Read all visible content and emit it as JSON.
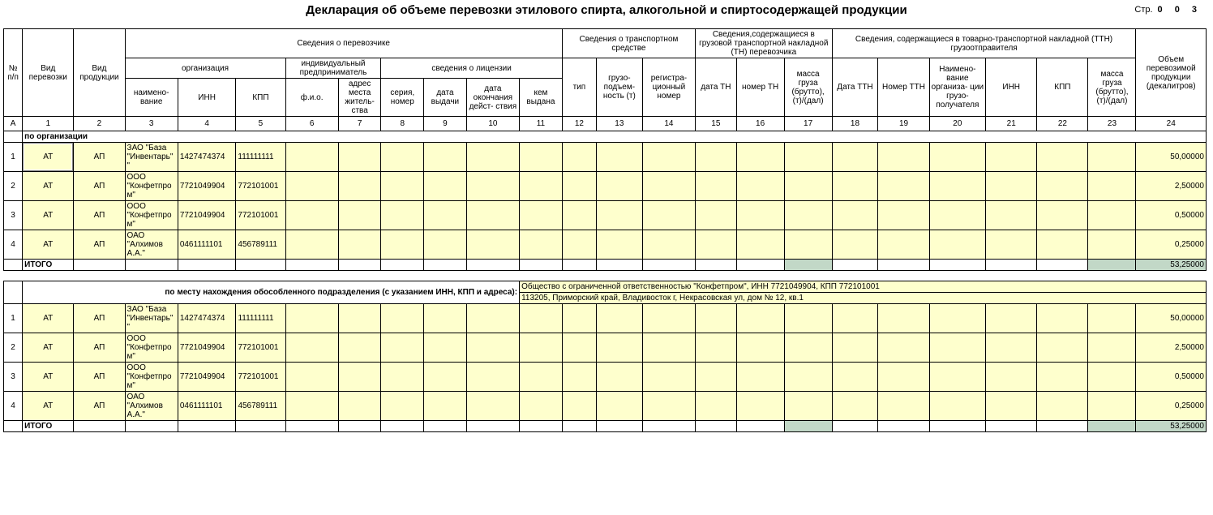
{
  "page": {
    "title": "Декларация об объеме перевозки этилового спирта, алкогольной и спиртосодержащей продукции",
    "page_label": "Стр.",
    "page_number": "0 0 3"
  },
  "colors": {
    "data_bg": "#feffcd",
    "total_bg": "#c2d8c7",
    "border": "#000000",
    "page_bg": "#ffffff"
  },
  "headers": {
    "num": "№ п/п",
    "vid_perevozki": "Вид перевозки",
    "vid_produkcii": "Вид продукции",
    "carrier": "Сведения о перевозчике",
    "org": "организация",
    "ip": "индивидуальный предприниматель",
    "license": "сведения о лицензии",
    "org_name": "наимено- вание",
    "inn": "ИНН",
    "kpp": "КПП",
    "fio": "ф.и.о.",
    "addr": "адрес места житель- ства",
    "serial": "серия, номер",
    "date_issue": "дата выдачи",
    "date_end": "дата окончания дейст- ствия",
    "issued_by": "кем выдана",
    "vehicle": "Сведения о транспортном средстве",
    "type": "тип",
    "capacity": "грузо- подъем- ность (т)",
    "reg_no": "регистра- ционный номер",
    "tn": "Сведения,содержащиеся в грузовой транспортной накладной (ТН) перевозчика",
    "tn_date": "дата ТН",
    "tn_no": "номер ТН",
    "tn_mass": "масса груза (брутто), (т)/(дал)",
    "ttn": "Сведения, содержащиеся в товарно-транспортной накладной (ТТН) грузоотправителя",
    "ttn_date": "Дата ТТН",
    "ttn_no": "Номер ТТН",
    "ttn_org": "Наимено- вание организа- ции грузо- получателя",
    "ttn_inn": "ИНН",
    "ttn_kpp": "КПП",
    "ttn_mass": "масса груза (брутто), (т)/(дал)",
    "volume": "Объем перевозимой продукции (декалитров)"
  },
  "colnums": [
    "А",
    "1",
    "2",
    "3",
    "4",
    "5",
    "6",
    "7",
    "8",
    "9",
    "10",
    "11",
    "12",
    "13",
    "14",
    "15",
    "16",
    "17",
    "18",
    "19",
    "20",
    "21",
    "22",
    "23",
    "24"
  ],
  "sections": {
    "org_label": "по организации",
    "subdiv_label": "по  месту нахождения обособленного подразделения (с указанием  ИНН, КПП и адреса):",
    "subdiv_line1": "Общество с ограниченной ответственностью \"Конфетпром\", ИНН 7721049904, КПП 772101001",
    "subdiv_line2": "113205, Приморский край, Владивосток г, Некрасовская ул, дом № 12, кв.1",
    "total_label": "ИТОГО"
  },
  "rows1": [
    {
      "num": "1",
      "vid_p": "АТ",
      "vid_prod": "АП",
      "name": "ЗАО \"База \"Инвентарь\"\"",
      "inn": "1427474374",
      "kpp": "111111111",
      "vol": "50,00000",
      "selected": true
    },
    {
      "num": "2",
      "vid_p": "АТ",
      "vid_prod": "АП",
      "name": "ООО \"Конфетпром\"",
      "inn": "7721049904",
      "kpp": "772101001",
      "vol": "2,50000"
    },
    {
      "num": "3",
      "vid_p": "АТ",
      "vid_prod": "АП",
      "name": "ООО \"Конфетпром\"",
      "inn": "7721049904",
      "kpp": "772101001",
      "vol": "0,50000"
    },
    {
      "num": "4",
      "vid_p": "АТ",
      "vid_prod": "АП",
      "name": "ОАО \"Алхимов А.А.\"",
      "inn": "0461111101",
      "kpp": "456789111",
      "vol": "0,25000"
    }
  ],
  "total1": "53,25000",
  "rows2": [
    {
      "num": "1",
      "vid_p": "АТ",
      "vid_prod": "АП",
      "name": "ЗАО \"База \"Инвентарь\"\"",
      "inn": "1427474374",
      "kpp": "111111111",
      "vol": "50,00000"
    },
    {
      "num": "2",
      "vid_p": "АТ",
      "vid_prod": "АП",
      "name": "ООО \"Конфетпром\"",
      "inn": "7721049904",
      "kpp": "772101001",
      "vol": "2,50000"
    },
    {
      "num": "3",
      "vid_p": "АТ",
      "vid_prod": "АП",
      "name": "ООО \"Конфетпром\"",
      "inn": "7721049904",
      "kpp": "772101001",
      "vol": "0,50000"
    },
    {
      "num": "4",
      "vid_p": "АТ",
      "vid_prod": "АП",
      "name": "ОАО \"Алхимов А.А.\"",
      "inn": "0461111101",
      "kpp": "456789111",
      "vol": "0,25000"
    }
  ],
  "total2": "53,25000"
}
